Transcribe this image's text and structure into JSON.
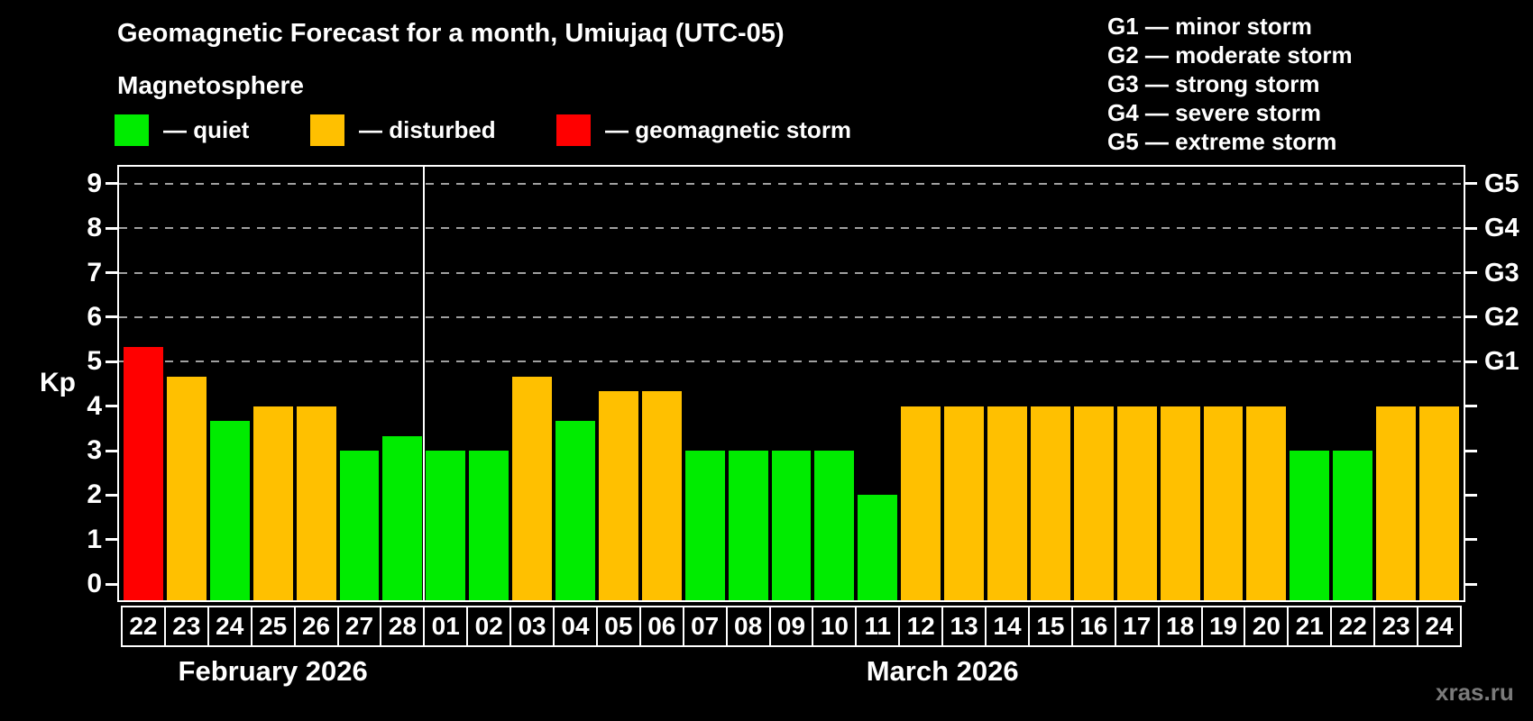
{
  "chart_data": {
    "type": "bar",
    "title": "Geomagnetic Forecast for a month, Umiujaq (UTC-05)",
    "subtitle": "Magnetosphere",
    "ylabel": "Kp",
    "ylim": [
      -0.36,
      9.38
    ],
    "yticks": [
      0,
      1,
      2,
      3,
      4,
      5,
      6,
      7,
      8,
      9
    ],
    "gridlines_at": [
      5,
      6,
      7,
      8,
      9
    ],
    "grid_style": "dashed gray horizontal lines at storm levels only",
    "legend_position": "top-left",
    "right_axis_labels": [
      {
        "kp": 5,
        "label": "G1"
      },
      {
        "kp": 6,
        "label": "G2"
      },
      {
        "kp": 7,
        "label": "G3"
      },
      {
        "kp": 8,
        "label": "G4"
      },
      {
        "kp": 9,
        "label": "G5"
      }
    ],
    "colors": {
      "quiet": "#00ec00",
      "disturbed": "#ffc000",
      "storm": "#ff0000"
    },
    "legend": [
      {
        "status": "quiet",
        "label": "— quiet"
      },
      {
        "status": "disturbed",
        "label": "— disturbed"
      },
      {
        "status": "storm",
        "label": "— geomagnetic storm"
      }
    ],
    "storm_scale": [
      "G1 — minor storm",
      "G2 — moderate storm",
      "G3 — strong storm",
      "G4 — severe storm",
      "G5 — extreme storm"
    ],
    "groups": [
      {
        "month_label": "February 2026",
        "days": [
          {
            "day": "22",
            "kp": 5.33,
            "status": "storm"
          },
          {
            "day": "23",
            "kp": 4.67,
            "status": "disturbed"
          },
          {
            "day": "24",
            "kp": 3.67,
            "status": "quiet"
          },
          {
            "day": "25",
            "kp": 4.0,
            "status": "disturbed"
          },
          {
            "day": "26",
            "kp": 4.0,
            "status": "disturbed"
          },
          {
            "day": "27",
            "kp": 3.0,
            "status": "quiet"
          },
          {
            "day": "28",
            "kp": 3.33,
            "status": "quiet"
          }
        ]
      },
      {
        "month_label": "March 2026",
        "days": [
          {
            "day": "01",
            "kp": 3.0,
            "status": "quiet"
          },
          {
            "day": "02",
            "kp": 3.0,
            "status": "quiet"
          },
          {
            "day": "03",
            "kp": 4.67,
            "status": "disturbed"
          },
          {
            "day": "04",
            "kp": 3.67,
            "status": "quiet"
          },
          {
            "day": "05",
            "kp": 4.33,
            "status": "disturbed"
          },
          {
            "day": "06",
            "kp": 4.33,
            "status": "disturbed"
          },
          {
            "day": "07",
            "kp": 3.0,
            "status": "quiet"
          },
          {
            "day": "08",
            "kp": 3.0,
            "status": "quiet"
          },
          {
            "day": "09",
            "kp": 3.0,
            "status": "quiet"
          },
          {
            "day": "10",
            "kp": 3.0,
            "status": "quiet"
          },
          {
            "day": "11",
            "kp": 2.0,
            "status": "quiet"
          },
          {
            "day": "12",
            "kp": 4.0,
            "status": "disturbed"
          },
          {
            "day": "13",
            "kp": 4.0,
            "status": "disturbed"
          },
          {
            "day": "14",
            "kp": 4.0,
            "status": "disturbed"
          },
          {
            "day": "15",
            "kp": 4.0,
            "status": "disturbed"
          },
          {
            "day": "16",
            "kp": 4.0,
            "status": "disturbed"
          },
          {
            "day": "17",
            "kp": 4.0,
            "status": "disturbed"
          },
          {
            "day": "18",
            "kp": 4.0,
            "status": "disturbed"
          },
          {
            "day": "19",
            "kp": 4.0,
            "status": "disturbed"
          },
          {
            "day": "20",
            "kp": 4.0,
            "status": "disturbed"
          },
          {
            "day": "21",
            "kp": 3.0,
            "status": "quiet"
          },
          {
            "day": "22",
            "kp": 3.0,
            "status": "quiet"
          },
          {
            "day": "23",
            "kp": 4.0,
            "status": "disturbed"
          },
          {
            "day": "24",
            "kp": 4.0,
            "status": "disturbed"
          }
        ]
      }
    ]
  },
  "watermark": "xras.ru"
}
